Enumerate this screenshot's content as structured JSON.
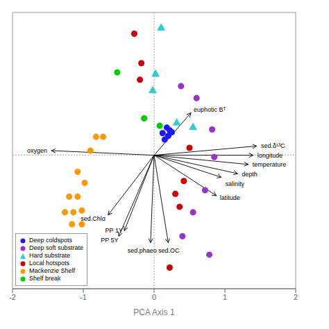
{
  "chart_data": {
    "type": "scatter",
    "xlabel": "PCA Axis 1",
    "xlim": [
      -2,
      2
    ],
    "xticks": [
      -2,
      -1,
      0,
      1,
      2
    ],
    "ylim": [
      -1.45,
      1.55
    ],
    "tick_labels": "x",
    "legend": "lower left",
    "series": [
      {
        "name": "Deep coldspots",
        "color": "#1a1aff",
        "marker": "circle",
        "points": [
          [
            0.18,
            0.3
          ],
          [
            0.22,
            0.27
          ],
          [
            0.12,
            0.24
          ],
          [
            0.2,
            0.21
          ],
          [
            0.15,
            0.17
          ],
          [
            0.25,
            0.25
          ]
        ]
      },
      {
        "name": "Deep soft substrate",
        "color": "#9933cc",
        "marker": "circle",
        "points": [
          [
            0.38,
            0.75
          ],
          [
            0.6,
            0.62
          ],
          [
            0.82,
            0.28
          ],
          [
            0.85,
            -0.02
          ],
          [
            0.72,
            -0.38
          ],
          [
            0.55,
            -0.62
          ],
          [
            0.4,
            -0.88
          ],
          [
            0.78,
            -1.08
          ]
        ]
      },
      {
        "name": "Hard substrate",
        "color": "#33cccc",
        "marker": "triangle",
        "points": [
          [
            0.1,
            1.38
          ],
          [
            0.02,
            0.88
          ],
          [
            -0.02,
            0.7
          ],
          [
            0.32,
            0.35
          ],
          [
            0.55,
            0.3
          ]
        ]
      },
      {
        "name": "Local hotspots",
        "color": "#cc0000",
        "marker": "circle",
        "points": [
          [
            -0.28,
            1.32
          ],
          [
            -0.18,
            1.0
          ],
          [
            -0.2,
            0.82
          ],
          [
            0.5,
            0.08
          ],
          [
            0.42,
            -0.28
          ],
          [
            0.3,
            -0.42
          ],
          [
            0.36,
            -0.56
          ],
          [
            0.22,
            -1.22
          ]
        ]
      },
      {
        "name": "Mackenzie Shelf",
        "color": "#ff9900",
        "marker": "circle",
        "points": [
          [
            -0.82,
            0.2
          ],
          [
            -0.72,
            0.2
          ],
          [
            -0.9,
            0.05
          ],
          [
            -1.08,
            -0.18
          ],
          [
            -0.98,
            -0.3
          ],
          [
            -1.08,
            -0.45
          ],
          [
            -1.2,
            -0.45
          ],
          [
            -1.02,
            -0.6
          ],
          [
            -1.14,
            -0.62
          ],
          [
            -1.26,
            -0.62
          ],
          [
            -1.02,
            -0.75
          ],
          [
            -1.16,
            -0.75
          ]
        ]
      },
      {
        "name": "Shelf break",
        "color": "#00cc00",
        "marker": "circle",
        "points": [
          [
            -0.52,
            0.9
          ],
          [
            -0.14,
            0.4
          ],
          [
            0.08,
            0.32
          ]
        ]
      }
    ],
    "arrows": [
      {
        "end": [
          1.45,
          0.1
        ],
        "label": "sed.δ¹³C"
      },
      {
        "end": [
          1.4,
          0.0
        ],
        "label": "longitude"
      },
      {
        "end": [
          1.33,
          -0.1
        ],
        "label": "temperature"
      },
      {
        "end": [
          0.95,
          -0.24
        ],
        "label": "salinity"
      },
      {
        "end": [
          1.18,
          -0.2
        ],
        "label": "depth"
      },
      {
        "end": [
          0.88,
          -0.44
        ],
        "label": "latitude"
      },
      {
        "end": [
          0.52,
          0.46
        ],
        "label": "euphotic Bᵀ"
      },
      {
        "end": [
          -1.45,
          0.05
        ],
        "label": "oxygen"
      },
      {
        "end": [
          -0.65,
          -0.65
        ],
        "label": "sed.Chlα"
      },
      {
        "end": [
          -0.42,
          -0.82
        ],
        "label": "PP 1Y"
      },
      {
        "end": [
          -0.5,
          -0.88
        ],
        "label": "PP 5Y"
      },
      {
        "end": [
          -0.05,
          -0.95
        ],
        "label": "sed.phaeo"
      },
      {
        "end": [
          0.2,
          -0.95
        ],
        "label": "sed.OC"
      }
    ]
  }
}
